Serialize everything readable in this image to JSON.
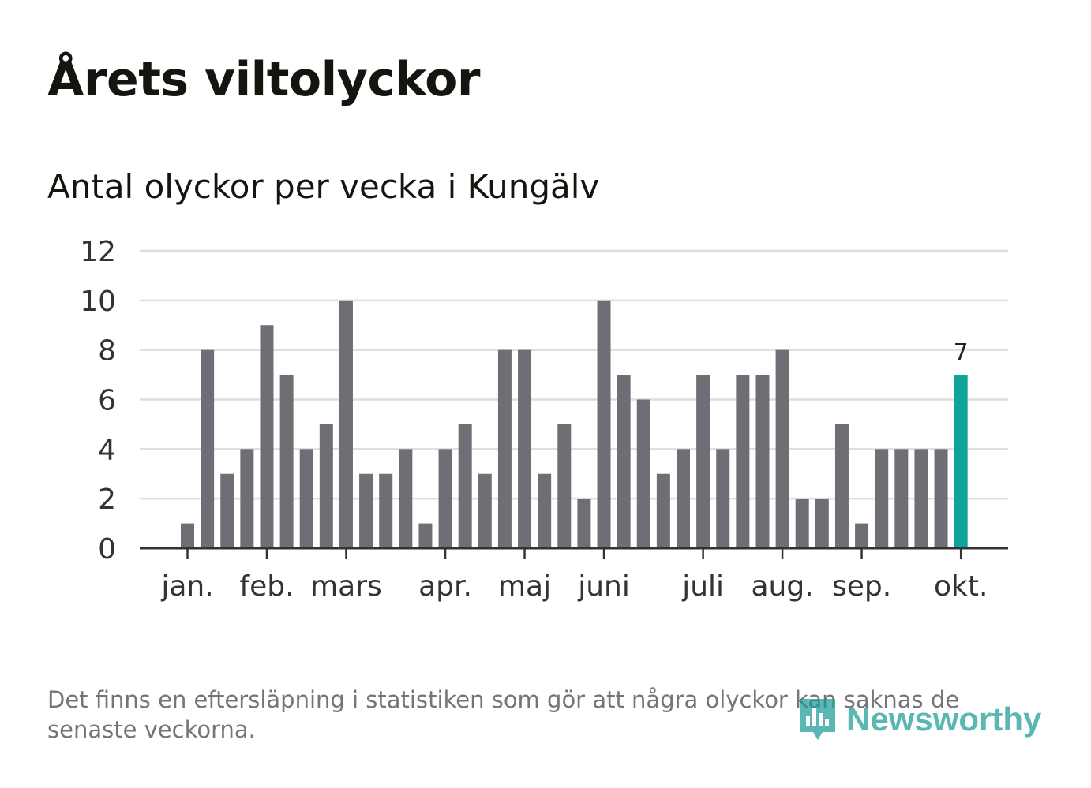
{
  "header": {
    "title": "Årets viltolyckor",
    "subtitle": "Antal olyckor per vecka i Kungälv"
  },
  "chart_data": {
    "type": "bar",
    "title": "Årets viltolyckor",
    "subtitle": "Antal olyckor per vecka i Kungälv",
    "xlabel": "",
    "ylabel": "",
    "ylim": [
      0,
      12
    ],
    "yticks": [
      0,
      2,
      4,
      6,
      8,
      10,
      12
    ],
    "grid": true,
    "values": [
      1,
      8,
      3,
      4,
      9,
      7,
      4,
      5,
      10,
      3,
      3,
      4,
      1,
      4,
      5,
      3,
      8,
      8,
      3,
      5,
      2,
      10,
      7,
      6,
      3,
      4,
      7,
      4,
      7,
      7,
      8,
      2,
      2,
      5,
      1,
      4,
      4,
      4,
      4,
      7
    ],
    "month_labels": [
      {
        "label": "jan.",
        "bar_index": 0
      },
      {
        "label": "feb.",
        "bar_index": 4
      },
      {
        "label": "mars",
        "bar_index": 8
      },
      {
        "label": "apr.",
        "bar_index": 13
      },
      {
        "label": "maj",
        "bar_index": 17
      },
      {
        "label": "juni",
        "bar_index": 21
      },
      {
        "label": "juli",
        "bar_index": 26
      },
      {
        "label": "aug.",
        "bar_index": 30
      },
      {
        "label": "sep.",
        "bar_index": 34
      },
      {
        "label": "okt.",
        "bar_index": 39
      }
    ],
    "highlight": {
      "bar_index": 39,
      "value_label": "7"
    },
    "colors": {
      "bar": "#6f6e74",
      "highlight": "#0fa39a",
      "grid": "#dddddd",
      "axis": "#333333",
      "tick_text": "#333333",
      "value_label": "#222222"
    }
  },
  "footer": {
    "note": "Det finns en eftersläpning i statistiken som gör att några olyckor kan saknas de senaste veckorna.",
    "logo_text": "Newsworthy"
  },
  "colors": {
    "brand": "#159a95"
  }
}
